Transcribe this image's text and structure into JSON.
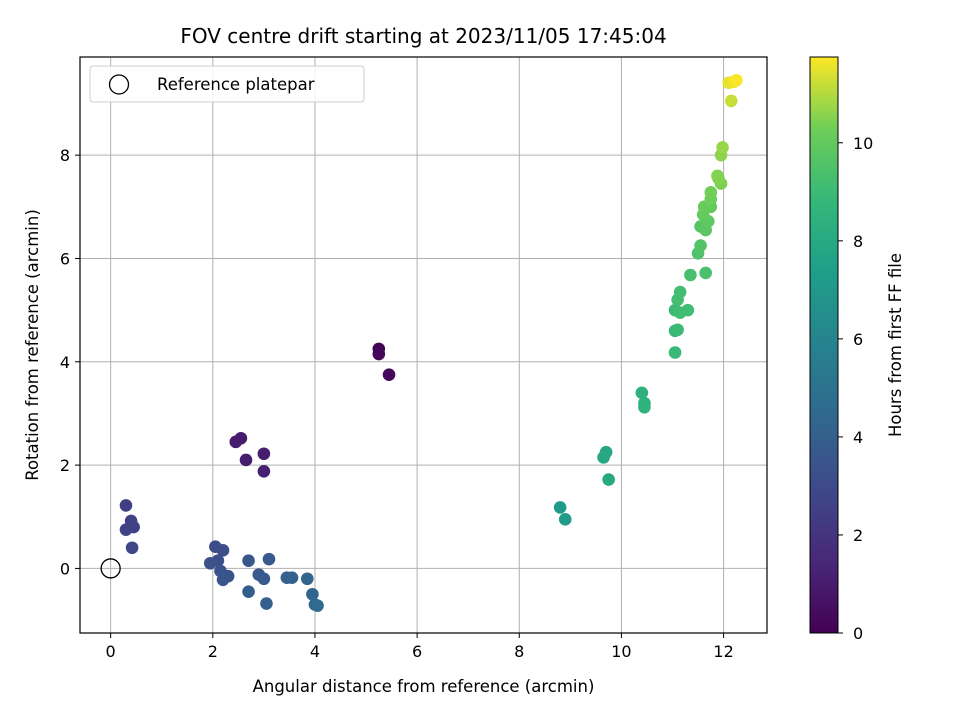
{
  "chart_data": {
    "type": "scatter",
    "title": "FOV centre drift starting at 2023/11/05 17:45:04",
    "xlabel": "Angular distance from reference (arcmin)",
    "ylabel": "Rotation from reference (arcmin)",
    "xlim": [
      -0.6,
      12.85
    ],
    "ylim": [
      -1.25,
      9.9
    ],
    "xticks": [
      0,
      2,
      4,
      6,
      8,
      10,
      12
    ],
    "yticks": [
      0,
      2,
      4,
      6,
      8
    ],
    "grid": true,
    "legend": {
      "placement": "top-left",
      "entries": [
        {
          "label": "Reference platepar",
          "marker": "open-circle"
        }
      ]
    },
    "reference_point": {
      "x": 0,
      "y": 0
    },
    "colorbar": {
      "label": "Hours from first FF file",
      "colormap": "viridis",
      "range": [
        0,
        11.75
      ],
      "ticks": [
        0,
        2,
        4,
        6,
        8,
        10
      ]
    },
    "points": [
      {
        "x": 5.25,
        "y": 4.25,
        "c": 0.1
      },
      {
        "x": 5.25,
        "y": 4.15,
        "c": 0.2
      },
      {
        "x": 5.45,
        "y": 3.75,
        "c": 0.3
      },
      {
        "x": 2.45,
        "y": 2.45,
        "c": 1.0
      },
      {
        "x": 2.55,
        "y": 2.52,
        "c": 1.0
      },
      {
        "x": 3.0,
        "y": 2.22,
        "c": 1.1
      },
      {
        "x": 2.65,
        "y": 2.1,
        "c": 1.1
      },
      {
        "x": 3.0,
        "y": 1.88,
        "c": 1.2
      },
      {
        "x": 0.3,
        "y": 1.22,
        "c": 2.5
      },
      {
        "x": 0.4,
        "y": 0.92,
        "c": 2.6
      },
      {
        "x": 0.45,
        "y": 0.8,
        "c": 2.6
      },
      {
        "x": 0.3,
        "y": 0.75,
        "c": 2.7
      },
      {
        "x": 0.42,
        "y": 0.4,
        "c": 2.8
      },
      {
        "x": 2.05,
        "y": 0.42,
        "c": 3.1
      },
      {
        "x": 2.2,
        "y": 0.35,
        "c": 3.2
      },
      {
        "x": 2.1,
        "y": 0.15,
        "c": 3.2
      },
      {
        "x": 1.95,
        "y": 0.1,
        "c": 3.3
      },
      {
        "x": 2.15,
        "y": -0.05,
        "c": 3.4
      },
      {
        "x": 2.3,
        "y": -0.15,
        "c": 3.4
      },
      {
        "x": 2.2,
        "y": -0.22,
        "c": 3.5
      },
      {
        "x": 2.7,
        "y": 0.15,
        "c": 3.6
      },
      {
        "x": 3.1,
        "y": 0.18,
        "c": 3.7
      },
      {
        "x": 2.9,
        "y": -0.12,
        "c": 3.8
      },
      {
        "x": 3.0,
        "y": -0.2,
        "c": 3.8
      },
      {
        "x": 2.7,
        "y": -0.45,
        "c": 3.9
      },
      {
        "x": 3.05,
        "y": -0.68,
        "c": 4.0
      },
      {
        "x": 3.45,
        "y": -0.18,
        "c": 4.0
      },
      {
        "x": 3.55,
        "y": -0.18,
        "c": 4.1
      },
      {
        "x": 3.85,
        "y": -0.2,
        "c": 4.2
      },
      {
        "x": 3.95,
        "y": -0.5,
        "c": 4.3
      },
      {
        "x": 4.0,
        "y": -0.7,
        "c": 4.4
      },
      {
        "x": 4.05,
        "y": -0.72,
        "c": 4.5
      },
      {
        "x": 8.8,
        "y": 1.18,
        "c": 7.2
      },
      {
        "x": 8.9,
        "y": 0.95,
        "c": 7.3
      },
      {
        "x": 9.7,
        "y": 2.25,
        "c": 7.8
      },
      {
        "x": 9.65,
        "y": 2.15,
        "c": 7.9
      },
      {
        "x": 9.75,
        "y": 1.72,
        "c": 8.0
      },
      {
        "x": 10.4,
        "y": 3.4,
        "c": 8.4
      },
      {
        "x": 10.45,
        "y": 3.2,
        "c": 8.5
      },
      {
        "x": 10.45,
        "y": 3.12,
        "c": 8.5
      },
      {
        "x": 11.05,
        "y": 4.18,
        "c": 8.9
      },
      {
        "x": 11.05,
        "y": 4.6,
        "c": 8.9
      },
      {
        "x": 11.1,
        "y": 4.62,
        "c": 9.0
      },
      {
        "x": 11.05,
        "y": 5.0,
        "c": 9.0
      },
      {
        "x": 11.15,
        "y": 4.95,
        "c": 9.1
      },
      {
        "x": 11.3,
        "y": 5.0,
        "c": 9.1
      },
      {
        "x": 11.1,
        "y": 5.2,
        "c": 9.2
      },
      {
        "x": 11.15,
        "y": 5.35,
        "c": 9.2
      },
      {
        "x": 11.35,
        "y": 5.68,
        "c": 9.3
      },
      {
        "x": 11.65,
        "y": 5.72,
        "c": 9.4
      },
      {
        "x": 11.5,
        "y": 6.1,
        "c": 9.5
      },
      {
        "x": 11.55,
        "y": 6.25,
        "c": 9.6
      },
      {
        "x": 11.55,
        "y": 6.62,
        "c": 9.7
      },
      {
        "x": 11.65,
        "y": 6.55,
        "c": 9.8
      },
      {
        "x": 11.7,
        "y": 6.72,
        "c": 9.9
      },
      {
        "x": 11.6,
        "y": 6.85,
        "c": 10.0
      },
      {
        "x": 11.75,
        "y": 7.0,
        "c": 10.0
      },
      {
        "x": 11.62,
        "y": 7.0,
        "c": 10.1
      },
      {
        "x": 11.75,
        "y": 7.15,
        "c": 10.2
      },
      {
        "x": 11.75,
        "y": 7.28,
        "c": 10.3
      },
      {
        "x": 11.95,
        "y": 7.45,
        "c": 10.4
      },
      {
        "x": 11.9,
        "y": 7.55,
        "c": 10.5
      },
      {
        "x": 11.88,
        "y": 7.6,
        "c": 10.5
      },
      {
        "x": 11.95,
        "y": 8.0,
        "c": 10.6
      },
      {
        "x": 11.98,
        "y": 8.15,
        "c": 10.7
      },
      {
        "x": 12.15,
        "y": 9.05,
        "c": 11.2
      },
      {
        "x": 12.1,
        "y": 9.4,
        "c": 11.5
      },
      {
        "x": 12.2,
        "y": 9.42,
        "c": 11.6
      },
      {
        "x": 12.25,
        "y": 9.45,
        "c": 11.7
      }
    ]
  }
}
